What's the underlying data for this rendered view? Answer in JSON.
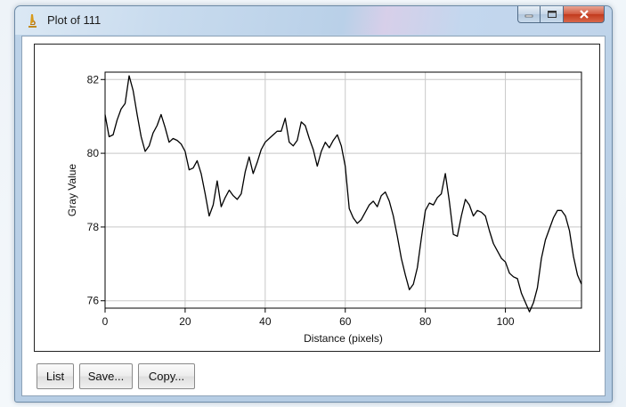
{
  "window": {
    "title": "Plot of 111",
    "icon": "imagej-microscope-icon"
  },
  "window_controls": [
    "minimize",
    "maximize",
    "close"
  ],
  "buttons": {
    "list": "List",
    "save": "Save...",
    "copy": "Copy..."
  },
  "chart_data": {
    "type": "line",
    "title": "",
    "xlabel": "Distance (pixels)",
    "ylabel": "Gray Value",
    "xlim": [
      0,
      119
    ],
    "ylim": [
      75.8,
      82.2
    ],
    "xticks": [
      0,
      20,
      40,
      60,
      80,
      100
    ],
    "yticks": [
      76,
      78,
      80,
      82
    ],
    "grid": true,
    "series": [
      {
        "color": "#000000",
        "x": [
          0,
          1,
          2,
          3,
          4,
          5,
          6,
          7,
          8,
          9,
          10,
          11,
          12,
          13,
          14,
          15,
          16,
          17,
          18,
          19,
          20,
          21,
          22,
          23,
          24,
          25,
          26,
          27,
          28,
          29,
          30,
          31,
          32,
          33,
          34,
          35,
          36,
          37,
          38,
          39,
          40,
          41,
          42,
          43,
          44,
          45,
          46,
          47,
          48,
          49,
          50,
          51,
          52,
          53,
          54,
          55,
          56,
          57,
          58,
          59,
          60,
          61,
          62,
          63,
          64,
          65,
          66,
          67,
          68,
          69,
          70,
          71,
          72,
          73,
          74,
          75,
          76,
          77,
          78,
          79,
          80,
          81,
          82,
          83,
          84,
          85,
          86,
          87,
          88,
          89,
          90,
          91,
          92,
          93,
          94,
          95,
          96,
          97,
          98,
          99,
          100,
          101,
          102,
          103,
          104,
          105,
          106,
          107,
          108,
          109,
          110,
          111,
          112,
          113,
          114,
          115,
          116,
          117,
          118,
          119
        ],
        "y": [
          81.05,
          80.45,
          80.5,
          80.9,
          81.2,
          81.35,
          82.1,
          81.7,
          81.05,
          80.45,
          80.05,
          80.2,
          80.55,
          80.75,
          81.05,
          80.7,
          80.3,
          80.4,
          80.35,
          80.25,
          80.05,
          79.55,
          79.6,
          79.8,
          79.45,
          78.9,
          78.3,
          78.6,
          79.25,
          78.55,
          78.8,
          79.0,
          78.85,
          78.75,
          78.9,
          79.5,
          79.9,
          79.45,
          79.75,
          80.1,
          80.3,
          80.4,
          80.5,
          80.6,
          80.6,
          80.95,
          80.3,
          80.2,
          80.35,
          80.85,
          80.75,
          80.4,
          80.1,
          79.65,
          80.05,
          80.3,
          80.15,
          80.35,
          80.5,
          80.2,
          79.65,
          78.5,
          78.25,
          78.1,
          78.2,
          78.4,
          78.6,
          78.7,
          78.55,
          78.85,
          78.95,
          78.7,
          78.3,
          77.75,
          77.15,
          76.7,
          76.3,
          76.45,
          76.9,
          77.7,
          78.45,
          78.65,
          78.6,
          78.8,
          78.9,
          79.45,
          78.7,
          77.8,
          77.75,
          78.3,
          78.75,
          78.6,
          78.3,
          78.45,
          78.4,
          78.3,
          77.9,
          77.55,
          77.35,
          77.15,
          77.05,
          76.75,
          76.65,
          76.6,
          76.2,
          75.95,
          75.7,
          75.95,
          76.35,
          77.15,
          77.65,
          77.95,
          78.25,
          78.45,
          78.45,
          78.3,
          77.9,
          77.2,
          76.7,
          76.45
        ]
      }
    ]
  }
}
